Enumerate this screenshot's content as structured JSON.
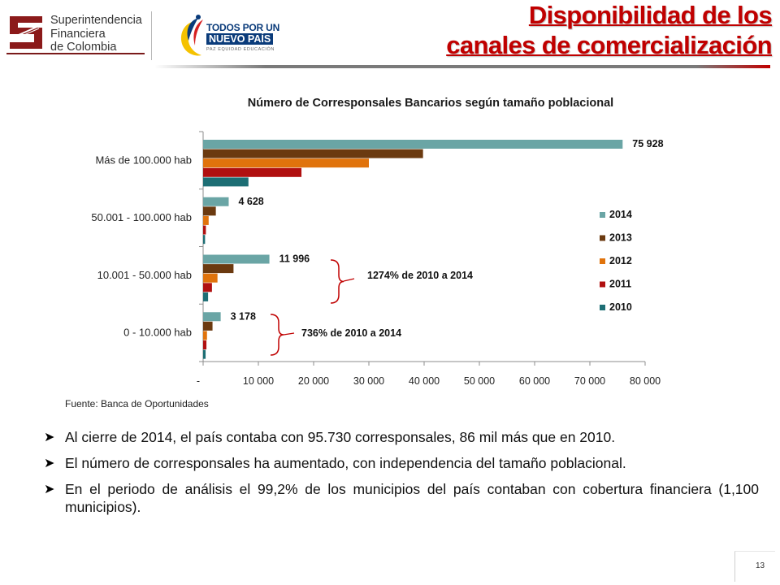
{
  "header": {
    "sfc_line1": "Superintendencia",
    "sfc_line2": "Financiera",
    "sfc_line3": "de Colombia",
    "todos_line1": "TODOS POR UN",
    "todos_line2": "NUEVO PAÍS",
    "todos_line3": "PAZ  EQUIDAD  EDUCACIÓN",
    "title_line1": "Disponibilidad de los",
    "title_line2": "canales de comercialización"
  },
  "chart_data": {
    "type": "bar",
    "orientation": "horizontal",
    "title": "Número de Corresponsales Bancarios  según tamaño poblacional",
    "categories": [
      "Más de 100.000 hab",
      "50.001 - 100.000 hab",
      "10.001 - 50.000 hab",
      "0 - 10.000 hab"
    ],
    "series": [
      {
        "name": "2014",
        "color": "#6aa5a5",
        "values": [
          75928,
          4628,
          11996,
          3178
        ]
      },
      {
        "name": "2013",
        "color": "#6b3a10",
        "values": [
          39800,
          2300,
          5500,
          1700
        ]
      },
      {
        "name": "2012",
        "color": "#e0730c",
        "values": [
          30000,
          1000,
          2600,
          700
        ]
      },
      {
        "name": "2011",
        "color": "#b01010",
        "values": [
          17800,
          500,
          1600,
          600
        ]
      },
      {
        "name": "2010",
        "color": "#1d6e74",
        "values": [
          8200,
          350,
          900,
          450
        ]
      }
    ],
    "data_labels": [
      "75 928",
      "4 628",
      "11 996",
      "3 178"
    ],
    "annotations": [
      "1274% de 2010 a 2014",
      "736% de 2010 a 2014"
    ],
    "xlim": [
      0,
      80000
    ],
    "x_ticks": [
      "-",
      "10 000",
      "20 000",
      "30 000",
      "40 000",
      "50 000",
      "60 000",
      "70 000",
      "80 000"
    ],
    "grid": false,
    "legend_position": "right"
  },
  "source": "Fuente: Banca de Oportunidades",
  "bullets": [
    "Al cierre de 2014, el país contaba con 95.730 corresponsales, 86 mil más que en 2010.",
    "El número de corresponsales ha aumentado, con independencia del tamaño poblacional.",
    "En el periodo de análisis el 99,2% de los municipios del país contaban con cobertura financiera (1,100 municipios)."
  ],
  "page_number": "13"
}
